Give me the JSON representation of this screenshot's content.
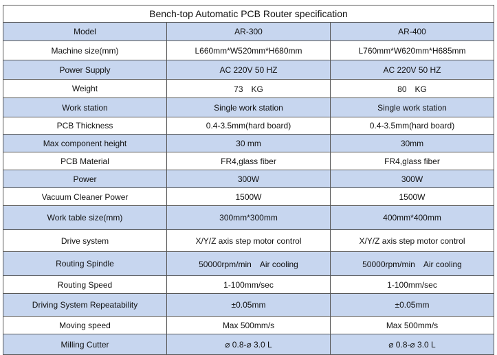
{
  "title": "Bench-top Automatic PCB Router specification",
  "rows": [
    {
      "label": "Model",
      "a": "AR-300",
      "b": "AR-400"
    },
    {
      "label": "Machine size(mm)",
      "a": "L660mm*W520mm*H680mm",
      "b": "L760mm*W620mm*H685mm"
    },
    {
      "label": "Power Supply",
      "a": "AC 220V 50 HZ",
      "b": "AC 220V 50 HZ"
    },
    {
      "label": "Weight",
      "a": "73　KG",
      "b": "80　KG"
    },
    {
      "label": "Work station",
      "a": "Single work station",
      "b": "Single work station"
    },
    {
      "label": "PCB Thickness",
      "a": "0.4-3.5mm(hard board)",
      "b": "0.4-3.5mm(hard board)"
    },
    {
      "label": "Max component height",
      "a": "30 mm",
      "b": "30mm"
    },
    {
      "label": "PCB Material",
      "a": "FR4,glass fiber",
      "b": "FR4,glass fiber"
    },
    {
      "label": "Power",
      "a": "300W",
      "b": "300W"
    },
    {
      "label": "Vacuum Cleaner Power",
      "a": "1500W",
      "b": "1500W"
    },
    {
      "label": "Work table size(mm)",
      "a": "300mm*300mm",
      "b": "400mm*400mm"
    },
    {
      "label": "Drive system",
      "a": "X/Y/Z axis step motor control",
      "b": "X/Y/Z axis step motor control"
    },
    {
      "label": "Routing Spindle",
      "a": "50000rpm/min　Air cooling",
      "b": "50000rpm/min　Air cooling"
    },
    {
      "label": "Routing Speed",
      "a": "1-100mm/sec",
      "b": "1-100mm/sec"
    },
    {
      "label": "Driving System Repeatability",
      "a": "±0.05mm",
      "b": "±0.05mm"
    },
    {
      "label": "Moving speed",
      "a": "Max 500mm/s",
      "b": "Max 500mm/s"
    },
    {
      "label": "Milling Cutter",
      "a": "⌀ 0.8-⌀ 3.0 L",
      "b": "⌀ 0.8-⌀ 3.0 L"
    }
  ],
  "colors": {
    "row_fill": "#c7d6ef",
    "border": "#555555"
  }
}
